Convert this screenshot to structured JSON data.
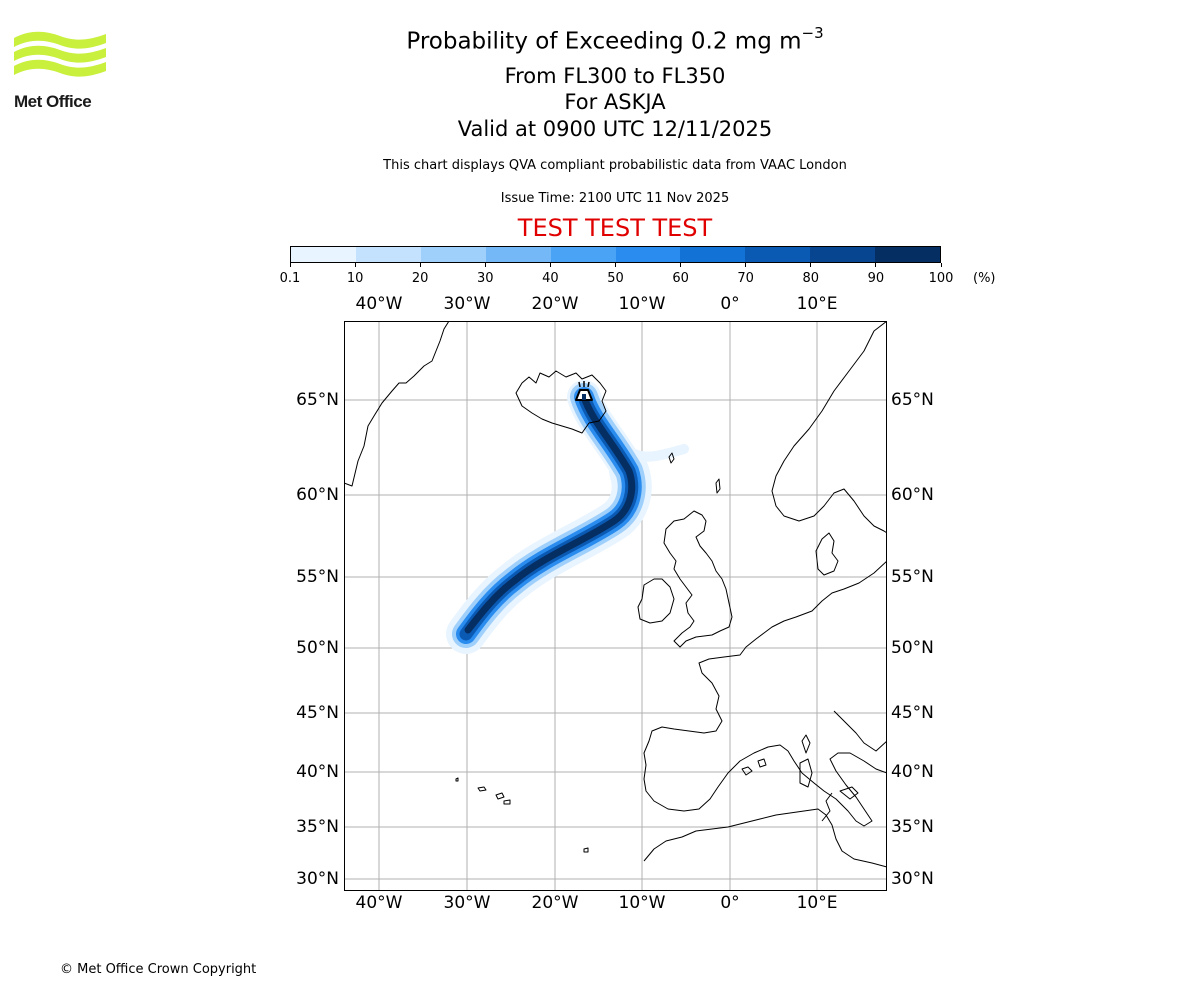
{
  "logo": {
    "text": "Met Office",
    "wave_color": "#c8f03c"
  },
  "header": {
    "title": "Probability of Exceeding 0.2 mg m",
    "title_superscript": "−3",
    "subtitle_levels": "From FL300 to FL350",
    "subtitle_volcano": "For ASKJA",
    "subtitle_valid": "Valid at 0900 UTC 12/11/2025",
    "description": "This chart displays QVA compliant probabilistic data from VAAC London",
    "issue_time": "Issue Time: 2100 UTC 11 Nov 2025",
    "test_banner": "TEST TEST TEST",
    "test_color": "#e00000"
  },
  "colorbar": {
    "ticks": [
      "0.1",
      "10",
      "20",
      "30",
      "40",
      "50",
      "60",
      "70",
      "80",
      "90",
      "100"
    ],
    "unit": "(%)",
    "colors": [
      "#e8f4ff",
      "#c4e2fd",
      "#9fcffb",
      "#75b8f8",
      "#4aa3f5",
      "#2a8cee",
      "#1272d6",
      "#0a5ab4",
      "#074590",
      "#052e63"
    ]
  },
  "map": {
    "lon_labels": [
      "40°W",
      "30°W",
      "20°W",
      "10°W",
      "0°",
      "10°E"
    ],
    "lat_labels": [
      "65°N",
      "60°N",
      "55°N",
      "50°N",
      "45°N",
      "40°N",
      "35°N",
      "30°N"
    ],
    "volcano_icon": "volcano-icon",
    "plume_peak_probability_percent": 100
  },
  "footer": {
    "copyright": "© Met Office Crown Copyright"
  }
}
